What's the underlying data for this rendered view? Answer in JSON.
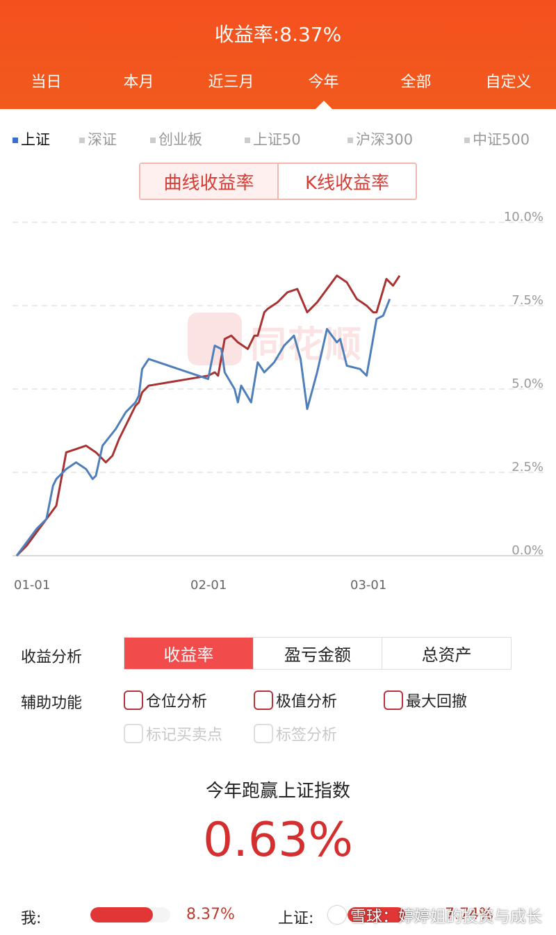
{
  "header": {
    "title": "收益率:8.37%",
    "tabs": [
      "当日",
      "本月",
      "近三月",
      "今年",
      "全部",
      "自定义"
    ],
    "active_tab": "今年",
    "bg_color": "#f4501e"
  },
  "index_selector": {
    "items": [
      "上证",
      "深证",
      "创业板",
      "上证50",
      "沪深300",
      "中证500"
    ],
    "active": "上证"
  },
  "curve_toggle": {
    "left": "曲线收益率",
    "right": "K线收益率"
  },
  "watermark": {
    "text": "同花顺"
  },
  "chart_data": {
    "type": "line",
    "x_labels": [
      "01-01",
      "02-01",
      "03-01"
    ],
    "y_ticks": [
      "0.0%",
      "2.5%",
      "5.0%",
      "7.5%",
      "10.0%"
    ],
    "ylim": [
      0,
      10
    ],
    "grid": true,
    "legend": "none",
    "series": [
      {
        "color": "#a83232",
        "values": [
          0,
          0.3,
          0.7,
          1.1,
          1.5,
          3.1,
          3.2,
          3.3,
          3.1,
          2.8,
          3.0,
          3.5,
          3.9,
          4.3,
          4.5,
          4.6,
          4.9,
          5.1,
          5.4,
          5.5,
          5.4,
          6.5,
          6.6,
          6.4,
          6.2,
          6.6,
          6.6,
          7.3,
          7.4,
          7.6,
          7.9,
          8.0,
          7.3,
          7.6,
          8.0,
          8.4,
          8.2,
          7.7,
          7.5,
          7.3,
          7.3,
          8.3,
          8.1,
          8.4
        ],
        "x_index": [
          0,
          3,
          6,
          9,
          12,
          15,
          18,
          21,
          24,
          27,
          29,
          31,
          33,
          35,
          36,
          37,
          38,
          40,
          58,
          60,
          61,
          63,
          65,
          67,
          70,
          72,
          73,
          75,
          76,
          79,
          82,
          85,
          88,
          91,
          94,
          97,
          100,
          103,
          106,
          108,
          109,
          112,
          114,
          116
        ]
      },
      {
        "color": "#4e7fba",
        "values": [
          0,
          0.4,
          0.8,
          1.1,
          2.1,
          2.3,
          2.6,
          2.8,
          2.6,
          2.3,
          2.4,
          3.3,
          3.8,
          4.3,
          4.4,
          4.6,
          4.8,
          5.6,
          5.9,
          5.3,
          6.3,
          6.2,
          5.5,
          5.0,
          4.6,
          5.1,
          4.6,
          5.8,
          5.5,
          5.8,
          6.3,
          6.6,
          5.9,
          4.4,
          5.5,
          6.8,
          6.4,
          6.5,
          5.7,
          5.6,
          5.4,
          7.1,
          7.2,
          7.7
        ],
        "x_index": [
          0,
          3,
          6,
          9,
          11,
          12,
          15,
          18,
          21,
          23,
          24,
          26,
          30,
          33,
          34,
          36,
          37,
          38,
          40,
          58,
          60,
          62,
          63,
          66,
          67,
          68,
          71,
          73,
          75,
          78,
          81,
          84,
          86,
          88,
          91,
          94,
          97,
          98,
          100,
          104,
          106,
          109,
          111,
          113
        ]
      }
    ]
  },
  "analysis": {
    "label": "收益分析",
    "tabs": [
      "收益率",
      "盈亏金额",
      "总资产"
    ],
    "active": "收益率"
  },
  "aux": {
    "label": "辅助功能",
    "options": [
      "仓位分析",
      "极值分析",
      "最大回撤"
    ],
    "disabled_options": [
      "标记买卖点",
      "标签分析"
    ]
  },
  "beat": {
    "title": "今年跑赢上证指数",
    "value": "0.63%"
  },
  "comparison": {
    "me_label": "我:",
    "me_value": "8.37%",
    "me_fill": 0.78,
    "index_label": "上证:",
    "index_value": "7.74%",
    "index_fill": 0.72
  },
  "xueqiu": {
    "text": "雪球：婷婷姐的投资与成长"
  }
}
